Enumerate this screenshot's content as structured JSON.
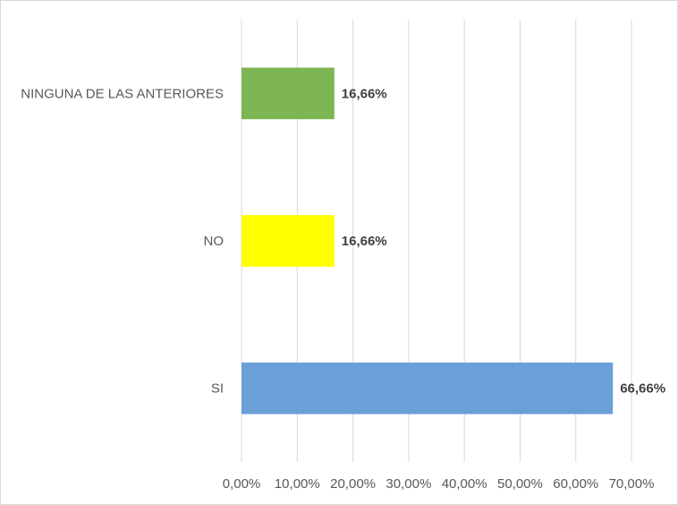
{
  "chart_data": {
    "type": "bar",
    "orientation": "horizontal",
    "title": "",
    "xlabel": "",
    "ylabel": "",
    "xlim": [
      0,
      70
    ],
    "x_ticks": [
      0,
      10,
      20,
      30,
      40,
      50,
      60,
      70
    ],
    "x_tick_labels": [
      "0,00%",
      "10,00%",
      "20,00%",
      "30,00%",
      "40,00%",
      "50,00%",
      "60,00%",
      "70,00%"
    ],
    "grid": "vertical",
    "legend": "none",
    "categories": [
      "SI",
      "NO",
      "NINGUNA DE LAS ANTERIORES"
    ],
    "values": [
      66.66,
      16.66,
      16.66
    ],
    "data_labels": [
      "66,66%",
      "16,66%",
      "16,66%"
    ],
    "colors": [
      "#6a9fd8",
      "#ffff00",
      "#7cb552"
    ]
  }
}
